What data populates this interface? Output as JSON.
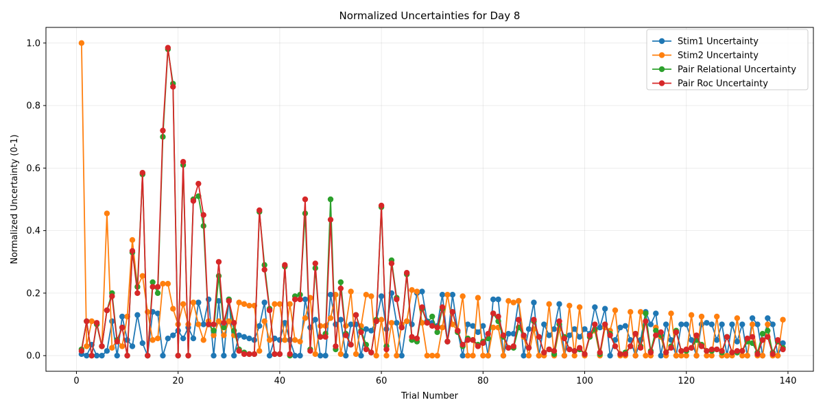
{
  "chart_data": {
    "type": "line",
    "title": "Normalized Uncertainties for Day 8",
    "xlabel": "Trial Number",
    "ylabel": "Normalized Uncertainty (0-1)",
    "xlim": [
      -6,
      145
    ],
    "ylim": [
      -0.05,
      1.05
    ],
    "xticks": [
      0,
      20,
      40,
      60,
      80,
      100,
      120,
      140
    ],
    "yticks": [
      0.0,
      0.2,
      0.4,
      0.6,
      0.8,
      1.0
    ],
    "xtick_labels": [
      "0",
      "20",
      "40",
      "60",
      "80",
      "100",
      "120",
      "140"
    ],
    "ytick_labels": [
      "0.0",
      "0.2",
      "0.4",
      "0.6",
      "0.8",
      "1.0"
    ],
    "grid": true,
    "legend_position": "top-right",
    "x": [
      1,
      2,
      3,
      4,
      5,
      6,
      7,
      8,
      9,
      10,
      11,
      12,
      13,
      14,
      15,
      16,
      17,
      18,
      19,
      20,
      21,
      22,
      23,
      24,
      25,
      26,
      27,
      28,
      29,
      30,
      31,
      32,
      33,
      34,
      35,
      36,
      37,
      38,
      39,
      40,
      41,
      42,
      43,
      44,
      45,
      46,
      47,
      48,
      49,
      50,
      51,
      52,
      53,
      54,
      55,
      56,
      57,
      58,
      59,
      60,
      61,
      62,
      63,
      64,
      65,
      66,
      67,
      68,
      69,
      70,
      71,
      72,
      73,
      74,
      75,
      76,
      77,
      78,
      79,
      80,
      81,
      82,
      83,
      84,
      85,
      86,
      87,
      88,
      89,
      90,
      91,
      92,
      93,
      94,
      95,
      96,
      97,
      98,
      99,
      100,
      101,
      102,
      103,
      104,
      105,
      106,
      107,
      108,
      109,
      110,
      111,
      112,
      113,
      114,
      115,
      116,
      117,
      118,
      119,
      120,
      121,
      122,
      123,
      124,
      125,
      126,
      127,
      128,
      129,
      130,
      131,
      132,
      133,
      134,
      135,
      136,
      137,
      138,
      139
    ],
    "series": [
      {
        "name": "Stim1 Uncertainty",
        "color": "#1f77b4",
        "values": [
          0.005,
          0.0,
          0.035,
          0.0,
          0.0,
          0.015,
          0.11,
          0.0,
          0.125,
          0.05,
          0.03,
          0.13,
          0.04,
          0.0,
          0.14,
          0.135,
          0.0,
          0.055,
          0.065,
          0.08,
          0.055,
          0.09,
          0.055,
          0.17,
          0.1,
          0.18,
          0.0,
          0.175,
          0.0,
          0.18,
          0.0,
          0.065,
          0.06,
          0.055,
          0.05,
          0.095,
          0.17,
          0.0,
          0.055,
          0.05,
          0.105,
          0.05,
          0.0,
          0.0,
          0.18,
          0.09,
          0.115,
          0.0,
          0.0,
          0.195,
          0.1,
          0.115,
          0.0,
          0.1,
          0.1,
          0.0,
          0.085,
          0.08,
          0.11,
          0.19,
          0.085,
          0.2,
          0.105,
          0.0,
          0.11,
          0.1,
          0.2,
          0.205,
          0.11,
          0.105,
          0.095,
          0.195,
          0.045,
          0.195,
          0.08,
          0.0,
          0.1,
          0.095,
          0.075,
          0.095,
          0.0,
          0.18,
          0.18,
          0.0,
          0.07,
          0.07,
          0.175,
          0.0,
          0.085,
          0.17,
          0.0,
          0.1,
          0.065,
          0.085,
          0.165,
          0.0,
          0.065,
          0.085,
          0.06,
          0.085,
          0.07,
          0.155,
          0.09,
          0.15,
          0.0,
          0.05,
          0.09,
          0.095,
          0.05,
          0.0,
          0.05,
          0.14,
          0.1,
          0.135,
          0.0,
          0.1,
          0.05,
          0.0,
          0.1,
          0.1,
          0.05,
          0.0,
          0.1,
          0.105,
          0.1,
          0.05,
          0.1,
          0.0,
          0.1,
          0.045,
          0.1,
          0.0,
          0.12,
          0.1,
          0.0,
          0.12,
          0.1,
          0.0,
          0.04
        ]
      },
      {
        "name": "Stim2 Uncertainty",
        "color": "#ff7f0e",
        "values": [
          1.0,
          0.03,
          0.11,
          0.1,
          0.03,
          0.455,
          0.025,
          0.05,
          0.03,
          0.125,
          0.37,
          0.22,
          0.255,
          0.14,
          0.05,
          0.055,
          0.23,
          0.23,
          0.15,
          0.1,
          0.165,
          0.1,
          0.17,
          0.1,
          0.05,
          0.11,
          0.065,
          0.11,
          0.065,
          0.11,
          0.065,
          0.17,
          0.165,
          0.16,
          0.16,
          0.015,
          0.11,
          0.05,
          0.165,
          0.165,
          0.05,
          0.165,
          0.05,
          0.045,
          0.12,
          0.185,
          0.005,
          0.095,
          0.095,
          0.12,
          0.195,
          0.005,
          0.095,
          0.205,
          0.005,
          0.095,
          0.195,
          0.19,
          0.0,
          0.115,
          0.0,
          0.105,
          0.0,
          0.1,
          0.11,
          0.21,
          0.205,
          0.105,
          0.0,
          0.0,
          0.0,
          0.09,
          0.195,
          0.1,
          0.08,
          0.19,
          0.0,
          0.0,
          0.185,
          0.0,
          0.0,
          0.09,
          0.09,
          0.0,
          0.175,
          0.17,
          0.175,
          0.06,
          0.0,
          0.085,
          0.0,
          0.0,
          0.165,
          0.0,
          0.085,
          0.0,
          0.16,
          0.0,
          0.155,
          0.0,
          0.06,
          0.08,
          0.0,
          0.09,
          0.08,
          0.145,
          0.0,
          0.0,
          0.14,
          0.0,
          0.14,
          0.0,
          0.0,
          0.09,
          0.06,
          0.0,
          0.135,
          0.0,
          0.0,
          0.0,
          0.13,
          0.0,
          0.125,
          0.0,
          0.0,
          0.125,
          0.0,
          0.0,
          0.0,
          0.12,
          0.0,
          0.0,
          0.1,
          0.0,
          0.0,
          0.1,
          0.0,
          0.0,
          0.115
        ]
      },
      {
        "name": "Pair Relational Uncertainty",
        "color": "#2ca02c",
        "values": [
          0.02,
          0.11,
          0.0,
          0.1,
          0.03,
          0.145,
          0.2,
          0.05,
          0.09,
          0.0,
          0.33,
          0.22,
          0.58,
          0.0,
          0.235,
          0.2,
          0.7,
          0.98,
          0.87,
          0.0,
          0.61,
          0.0,
          0.5,
          0.51,
          0.415,
          0.1,
          0.08,
          0.255,
          0.09,
          0.18,
          0.08,
          0.02,
          0.01,
          0.005,
          0.005,
          0.46,
          0.29,
          0.15,
          0.005,
          0.005,
          0.285,
          0.0,
          0.19,
          0.195,
          0.455,
          0.02,
          0.28,
          0.06,
          0.07,
          0.5,
          0.02,
          0.235,
          0.07,
          0.035,
          0.13,
          0.08,
          0.035,
          0.01,
          0.115,
          0.475,
          0.03,
          0.305,
          0.185,
          0.09,
          0.26,
          0.05,
          0.045,
          0.15,
          0.105,
          0.125,
          0.075,
          0.15,
          0.045,
          0.14,
          0.075,
          0.03,
          0.055,
          0.05,
          0.035,
          0.045,
          0.055,
          0.135,
          0.11,
          0.06,
          0.025,
          0.025,
          0.09,
          0.065,
          0.025,
          0.11,
          0.06,
          0.01,
          0.02,
          0.005,
          0.1,
          0.06,
          0.02,
          0.015,
          0.02,
          0.005,
          0.06,
          0.085,
          0.005,
          0.1,
          0.07,
          0.03,
          0.005,
          0.01,
          0.03,
          0.07,
          0.03,
          0.135,
          0.015,
          0.08,
          0.065,
          0.01,
          0.03,
          0.08,
          0.015,
          0.015,
          0.025,
          0.05,
          0.035,
          0.015,
          0.015,
          0.02,
          0.01,
          0.06,
          0.01,
          0.01,
          0.015,
          0.045,
          0.04,
          0.01,
          0.07,
          0.08,
          0.01,
          0.045,
          0.025
        ]
      },
      {
        "name": "Pair Roc Uncertainty",
        "color": "#d62728",
        "values": [
          0.015,
          0.11,
          0.0,
          0.105,
          0.03,
          0.145,
          0.19,
          0.045,
          0.09,
          0.0,
          0.335,
          0.2,
          0.585,
          0.0,
          0.22,
          0.22,
          0.72,
          0.985,
          0.86,
          0.0,
          0.62,
          0.0,
          0.495,
          0.55,
          0.45,
          0.1,
          0.1,
          0.3,
          0.105,
          0.175,
          0.105,
          0.015,
          0.005,
          0.005,
          0.005,
          0.465,
          0.275,
          0.145,
          0.005,
          0.005,
          0.29,
          0.005,
          0.18,
          0.18,
          0.5,
          0.015,
          0.295,
          0.06,
          0.06,
          0.435,
          0.03,
          0.215,
          0.065,
          0.035,
          0.13,
          0.075,
          0.02,
          0.01,
          0.11,
          0.48,
          0.02,
          0.295,
          0.18,
          0.09,
          0.265,
          0.06,
          0.055,
          0.155,
          0.105,
          0.095,
          0.09,
          0.155,
          0.045,
          0.14,
          0.08,
          0.035,
          0.05,
          0.05,
          0.03,
          0.04,
          0.07,
          0.135,
          0.125,
          0.065,
          0.025,
          0.03,
          0.115,
          0.065,
          0.025,
          0.115,
          0.06,
          0.01,
          0.02,
          0.015,
          0.11,
          0.055,
          0.02,
          0.015,
          0.025,
          0.005,
          0.065,
          0.1,
          0.01,
          0.1,
          0.065,
          0.03,
          0.005,
          0.005,
          0.03,
          0.07,
          0.025,
          0.11,
          0.01,
          0.065,
          0.075,
          0.01,
          0.025,
          0.075,
          0.015,
          0.02,
          0.025,
          0.065,
          0.03,
          0.015,
          0.02,
          0.02,
          0.015,
          0.06,
          0.01,
          0.015,
          0.015,
          0.055,
          0.06,
          0.005,
          0.05,
          0.06,
          0.005,
          0.05,
          0.02
        ]
      }
    ]
  }
}
